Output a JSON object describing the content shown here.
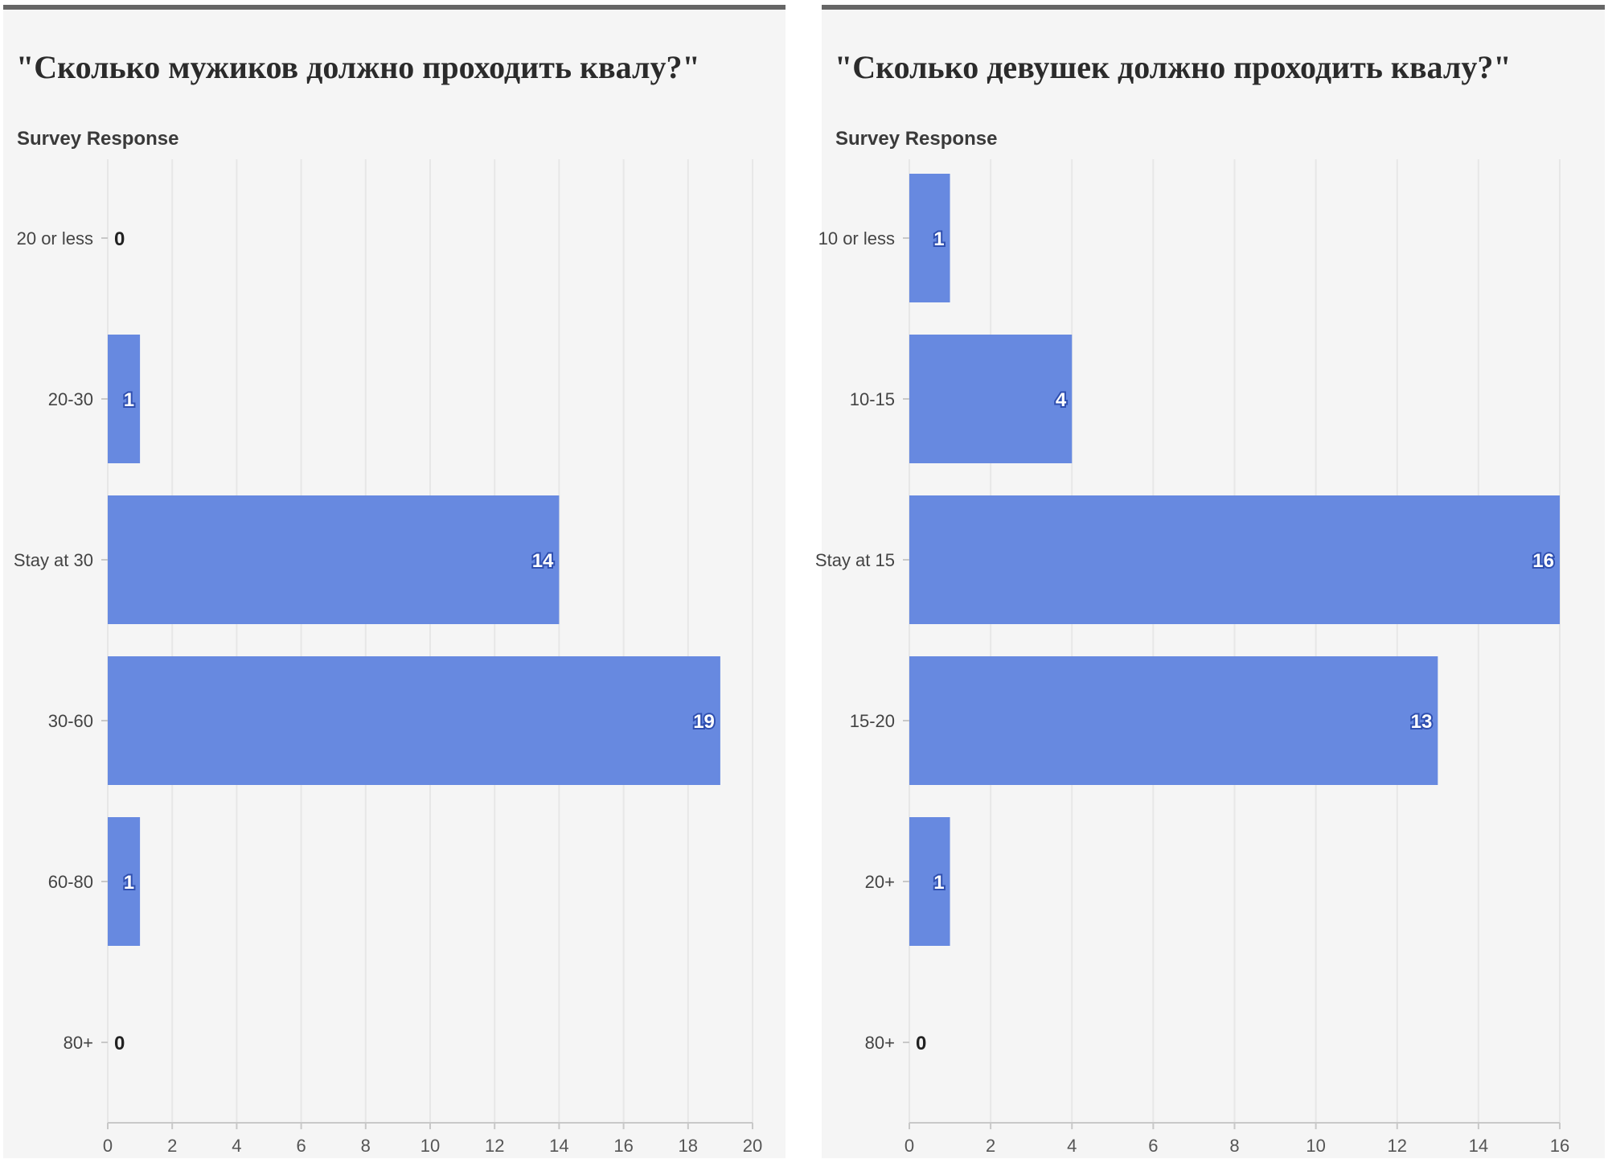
{
  "chart_data": [
    {
      "type": "bar",
      "orientation": "horizontal",
      "title": "\"Сколько мужиков должно проходить квалу?\"",
      "ylabel": "Survey Response",
      "xlabel": "",
      "categories": [
        "20 or less",
        "20-30",
        "Stay at 30",
        "30-60",
        "60-80",
        "80+"
      ],
      "values": [
        0,
        1,
        14,
        19,
        1,
        0
      ],
      "xlim": [
        0,
        20
      ],
      "xticks": [
        0,
        2,
        4,
        6,
        8,
        10,
        12,
        14,
        16,
        18,
        20
      ],
      "grid": true
    },
    {
      "type": "bar",
      "orientation": "horizontal",
      "title": "\"Сколько девушек должно проходить квалу?\"",
      "ylabel": "Survey Response",
      "xlabel": "",
      "categories": [
        "10 or less",
        "10-15",
        "Stay at 15",
        "15-20",
        "20+",
        "80+"
      ],
      "values": [
        1,
        4,
        16,
        13,
        1,
        0
      ],
      "xlim": [
        0,
        16
      ],
      "xticks": [
        0,
        2,
        4,
        6,
        8,
        10,
        12,
        14,
        16
      ],
      "grid": true
    }
  ],
  "colors": {
    "bar": "#6789e0",
    "grid": "#e7e7e7",
    "panel_bg": "#f5f5f5",
    "panel_border": "#666666",
    "value_label_inside": "#ffffff",
    "value_label_outline": "#2f4fb0",
    "value_label_zero": "#222222"
  }
}
